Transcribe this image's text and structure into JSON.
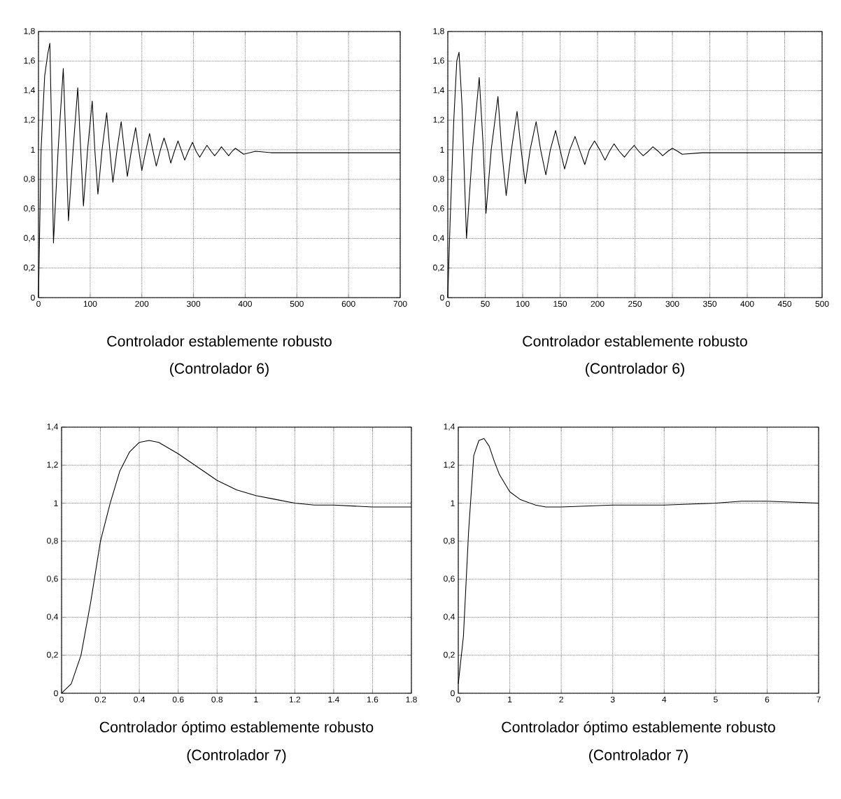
{
  "chart_data": [
    {
      "type": "line",
      "color": "#000000",
      "grid": true,
      "x": [
        0,
        2,
        5,
        12,
        18,
        22,
        25,
        29,
        38,
        48,
        53,
        58,
        67,
        76,
        81,
        87,
        95,
        104,
        109,
        115,
        123,
        132,
        138,
        144,
        152,
        160,
        166,
        172,
        180,
        188,
        194,
        200,
        208,
        215,
        221,
        228,
        236,
        243,
        250,
        256,
        263,
        270,
        277,
        283,
        290,
        298,
        305,
        312,
        319,
        326,
        334,
        341,
        348,
        354,
        361,
        368,
        375,
        381,
        389,
        397,
        420,
        450,
        500,
        550,
        600,
        650,
        700
      ],
      "values": [
        0,
        0.4,
        1.0,
        1.5,
        1.65,
        1.72,
        1.2,
        0.37,
        1.0,
        1.55,
        1.05,
        0.52,
        1.0,
        1.42,
        1.05,
        0.62,
        1.0,
        1.33,
        1.0,
        0.7,
        1.0,
        1.25,
        1.0,
        0.78,
        1.0,
        1.19,
        1.0,
        0.82,
        1.0,
        1.15,
        1.0,
        0.86,
        1.0,
        1.11,
        1.0,
        0.89,
        1.0,
        1.08,
        1.0,
        0.91,
        0.99,
        1.06,
        0.99,
        0.93,
        0.99,
        1.05,
        0.99,
        0.95,
        0.99,
        1.03,
        0.99,
        0.96,
        0.99,
        1.02,
        0.99,
        0.96,
        0.99,
        1.01,
        0.99,
        0.97,
        0.99,
        0.98,
        0.98,
        0.98,
        0.98,
        0.98,
        0.98
      ],
      "xlim": [
        0,
        700
      ],
      "xticks": [
        0,
        100,
        200,
        300,
        400,
        500,
        600,
        700
      ],
      "ylim": [
        0,
        1.8
      ],
      "yticks": [
        0,
        {
          "value": 0.2,
          "label": "0,2"
        },
        {
          "value": 0.4,
          "label": "0,4"
        },
        {
          "value": 0.6,
          "label": "0,6"
        },
        {
          "value": 0.8,
          "label": "0,8"
        },
        1,
        {
          "value": 1.2,
          "label": "1,2"
        },
        {
          "value": 1.4,
          "label": "1,4"
        },
        {
          "value": 1.6,
          "label": "1,6"
        },
        {
          "value": 1.8,
          "label": "1,8"
        }
      ],
      "annotations": [
        "Controlador establemente robusto",
        "(Controlador 6)"
      ]
    },
    {
      "type": "line",
      "color": "#000000",
      "grid": true,
      "x": [
        0,
        3,
        8,
        12,
        15,
        19,
        25,
        33,
        42,
        47,
        51,
        58,
        67,
        72,
        78,
        85,
        92.5,
        98,
        103.5,
        110,
        118,
        124,
        131,
        137,
        144,
        150,
        156,
        163,
        170,
        176,
        183,
        189,
        196,
        203,
        210,
        216,
        222,
        229,
        236,
        242,
        249,
        255,
        261,
        268,
        274,
        281,
        287,
        294,
        300,
        307,
        313,
        340,
        380,
        420,
        460,
        500
      ],
      "values": [
        0,
        0.5,
        1.2,
        1.6,
        1.66,
        1.3,
        0.4,
        1.0,
        1.49,
        1.05,
        0.57,
        1.0,
        1.36,
        1.0,
        0.69,
        1.0,
        1.26,
        1.0,
        0.77,
        1.0,
        1.19,
        1.0,
        0.83,
        1.0,
        1.13,
        1.0,
        0.87,
        1.0,
        1.09,
        1.0,
        0.9,
        1.0,
        1.06,
        1.0,
        0.93,
        0.99,
        1.04,
        0.99,
        0.95,
        0.99,
        1.03,
        0.99,
        0.96,
        0.99,
        1.02,
        0.99,
        0.96,
        0.99,
        1.01,
        0.99,
        0.97,
        0.98,
        0.98,
        0.98,
        0.98,
        0.98
      ],
      "xlim": [
        0,
        500
      ],
      "xticks": [
        0,
        50,
        100,
        150,
        200,
        250,
        300,
        350,
        400,
        450,
        500
      ],
      "ylim": [
        0,
        1.8
      ],
      "yticks": [
        0,
        {
          "value": 0.2,
          "label": "0,2"
        },
        {
          "value": 0.4,
          "label": "0,4"
        },
        {
          "value": 0.6,
          "label": "0,6"
        },
        {
          "value": 0.8,
          "label": "0,8"
        },
        1,
        {
          "value": 1.2,
          "label": "1,2"
        },
        {
          "value": 1.4,
          "label": "1,4"
        },
        {
          "value": 1.6,
          "label": "1,6"
        },
        {
          "value": 1.8,
          "label": "1,8"
        }
      ],
      "annotations": [
        "Controlador establemente robusto",
        "(Controlador 6)"
      ]
    },
    {
      "type": "line",
      "color": "#000000",
      "grid": true,
      "x": [
        0,
        0.05,
        0.1,
        0.15,
        0.2,
        0.25,
        0.3,
        0.35,
        0.4,
        0.45,
        0.5,
        0.6,
        0.7,
        0.8,
        0.9,
        1.0,
        1.1,
        1.2,
        1.3,
        1.4,
        1.6,
        1.8
      ],
      "values": [
        0,
        0.05,
        0.2,
        0.48,
        0.8,
        1.0,
        1.17,
        1.27,
        1.32,
        1.33,
        1.32,
        1.26,
        1.19,
        1.12,
        1.07,
        1.04,
        1.02,
        1.0,
        0.99,
        0.99,
        0.98,
        0.98
      ],
      "xlim": [
        0,
        1.8
      ],
      "xticks": [
        0,
        0.2,
        0.4,
        0.6,
        0.8,
        1,
        1.2,
        1.4,
        1.6,
        1.8
      ],
      "ylim": [
        0,
        1.4
      ],
      "yticks": [
        0,
        {
          "value": 0.2,
          "label": "0,2"
        },
        {
          "value": 0.4,
          "label": "0,4"
        },
        {
          "value": 0.6,
          "label": "0,6"
        },
        {
          "value": 0.8,
          "label": "0,8"
        },
        1,
        {
          "value": 1.2,
          "label": "1,2"
        },
        {
          "value": 1.4,
          "label": "1,4"
        }
      ],
      "annotations": [
        "Controlador óptimo establemente robusto",
        "(Controlador 7)"
      ]
    },
    {
      "type": "line",
      "color": "#000000",
      "grid": true,
      "x": [
        0,
        0.1,
        0.2,
        0.3,
        0.4,
        0.5,
        0.6,
        0.7,
        0.8,
        1.0,
        1.2,
        1.5,
        1.7,
        2,
        3,
        4,
        5,
        5.5,
        6,
        7
      ],
      "values": [
        0.05,
        0.3,
        0.85,
        1.25,
        1.33,
        1.34,
        1.3,
        1.22,
        1.15,
        1.06,
        1.02,
        0.99,
        0.98,
        0.98,
        0.99,
        0.99,
        1.0,
        1.01,
        1.01,
        1.0
      ],
      "xlim": [
        0,
        7
      ],
      "xticks": [
        0,
        1,
        2,
        3,
        4,
        5,
        6,
        7
      ],
      "ylim": [
        0,
        1.4
      ],
      "yticks": [
        0,
        {
          "value": 0.2,
          "label": "0,2"
        },
        {
          "value": 0.4,
          "label": "0,4"
        },
        {
          "value": 0.6,
          "label": "0,6"
        },
        {
          "value": 0.8,
          "label": "0,8"
        },
        1,
        {
          "value": 1.2,
          "label": "1,2"
        },
        {
          "value": 1.4,
          "label": "1,4"
        }
      ],
      "annotations": [
        "Controlador óptimo establemente robusto",
        "(Controlador 7)"
      ]
    }
  ]
}
